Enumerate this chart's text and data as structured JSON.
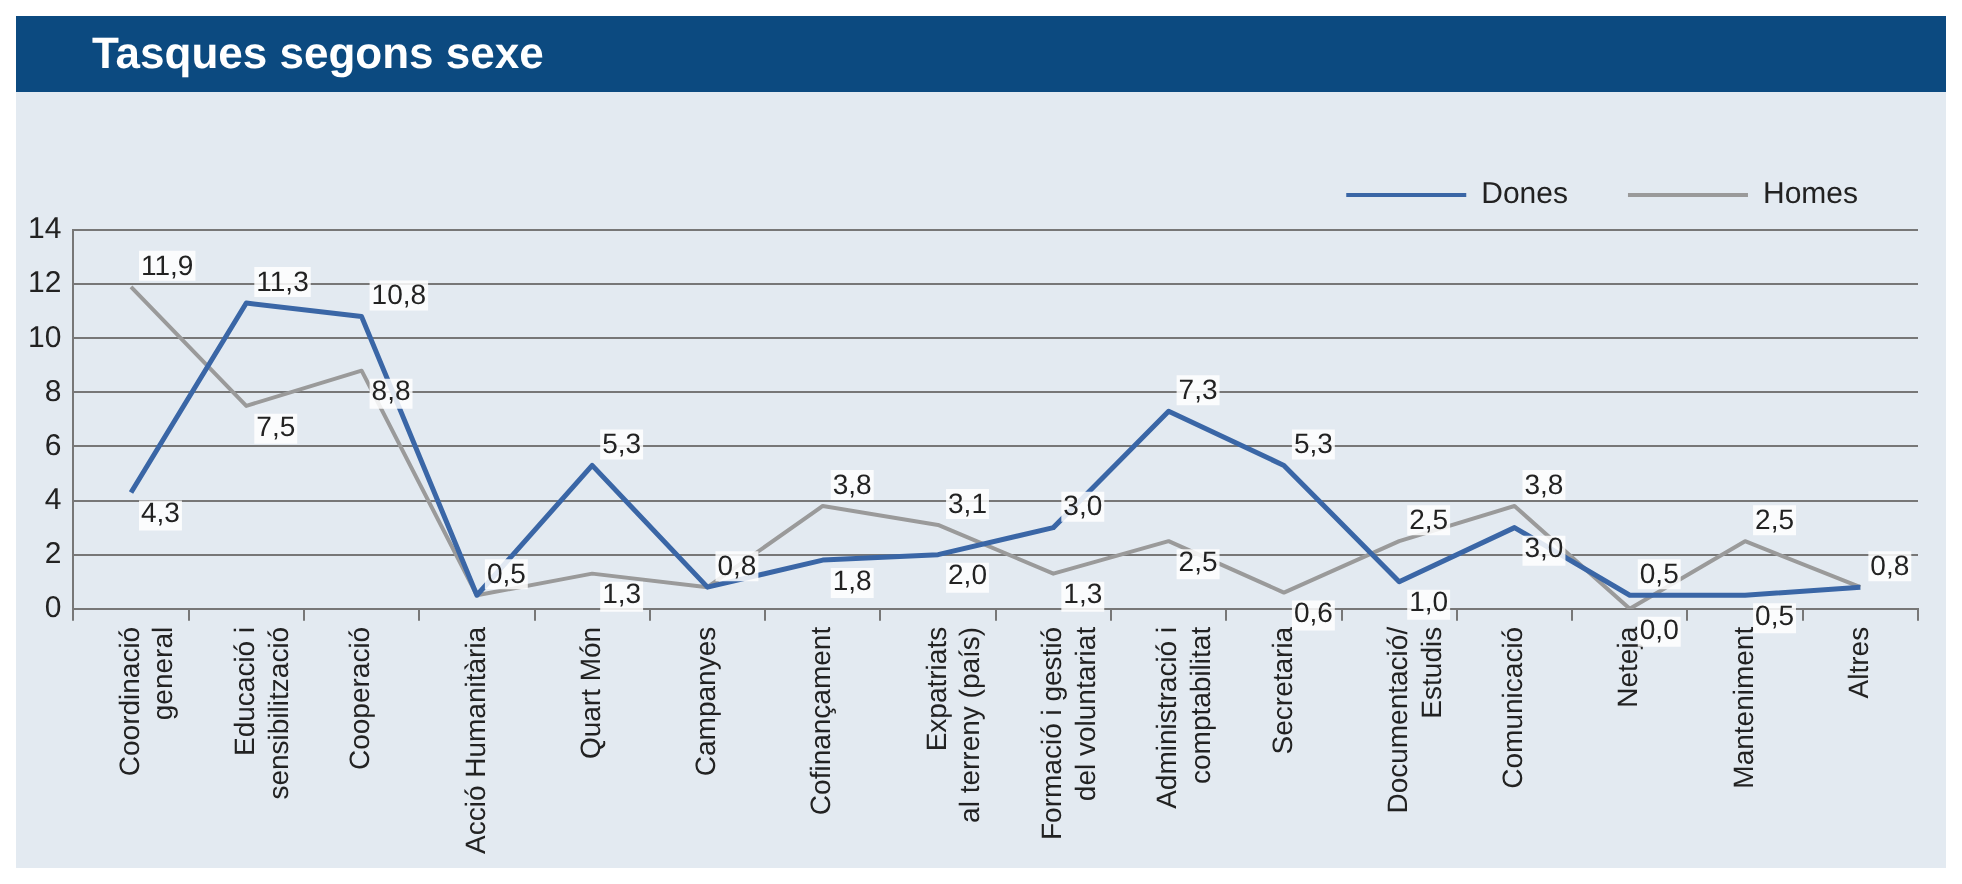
{
  "chart_data": {
    "type": "line",
    "title": "Tasques segons sexe",
    "categories": [
      "Coordinació\ngeneral",
      "Educació i\nsensibilització",
      "Cooperació",
      "Acció Humanitària",
      "Quart Món",
      "Campanyes",
      "Cofinançament",
      "Expatriats\nal terreny (país)",
      "Formació i gestió\ndel voluntariat",
      "Administració i\ncomptabilitat",
      "Secretaria",
      "Documentació/\nEstudis",
      "Comunicació",
      "Neteja",
      "Manteniment",
      "Altres"
    ],
    "series": [
      {
        "name": "Dones",
        "color": "#3a66a6",
        "values": [
          4.3,
          11.3,
          10.8,
          0.5,
          5.3,
          0.8,
          1.8,
          2.0,
          3.0,
          7.3,
          5.3,
          1.0,
          3.0,
          0.5,
          0.5,
          0.8
        ],
        "value_labels": [
          "4,3",
          "11,3",
          "10,8",
          "0,5",
          "5,3",
          "0,8",
          "1,8",
          "2,0",
          "3,0",
          "7,3",
          "5,3",
          "1,0",
          "3,0",
          "0,5",
          "0,5",
          "0,8"
        ]
      },
      {
        "name": "Homes",
        "color": "#9a9a9a",
        "values": [
          11.9,
          7.5,
          8.8,
          0.5,
          1.3,
          0.8,
          3.8,
          3.1,
          1.3,
          2.5,
          0.6,
          2.5,
          3.8,
          0.0,
          2.5,
          0.8
        ],
        "value_labels": [
          "11,9",
          "7,5",
          "8,8",
          null,
          "1,3",
          null,
          "3,8",
          "3,1",
          "1,3",
          "2,5",
          "0,6",
          "2,5",
          "3,8",
          "0,0",
          "2,5",
          null
        ]
      }
    ],
    "ylim": [
      0,
      14
    ],
    "yticks": [
      0,
      2,
      4,
      6,
      8,
      10,
      12,
      14
    ],
    "grid": "y",
    "legend": "top right",
    "marker": "none",
    "line_style": "solid"
  }
}
